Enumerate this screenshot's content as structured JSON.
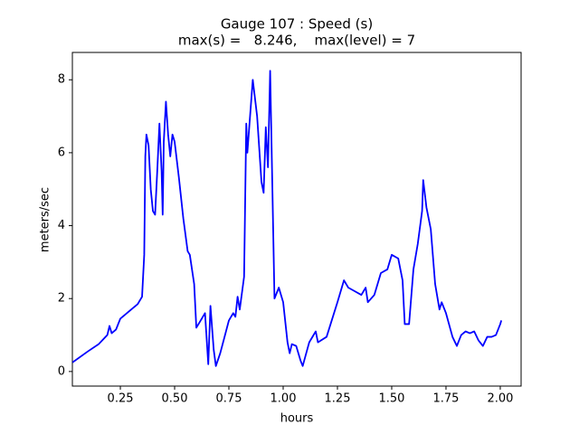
{
  "chart_data": {
    "type": "line",
    "title": "Gauge 107 : Speed (s)",
    "subtitle": "max(s) =   8.246,    max(level) = 7",
    "xlabel": "hours",
    "ylabel": "meters/sec",
    "x": [
      0.03,
      0.1,
      0.15,
      0.19,
      0.2,
      0.21,
      0.23,
      0.25,
      0.3,
      0.33,
      0.35,
      0.36,
      0.365,
      0.37,
      0.38,
      0.39,
      0.4,
      0.41,
      0.42,
      0.43,
      0.44,
      0.445,
      0.45,
      0.46,
      0.47,
      0.48,
      0.49,
      0.5,
      0.52,
      0.54,
      0.56,
      0.57,
      0.59,
      0.6,
      0.62,
      0.64,
      0.655,
      0.665,
      0.68,
      0.69,
      0.71,
      0.75,
      0.77,
      0.78,
      0.79,
      0.8,
      0.82,
      0.83,
      0.835,
      0.86,
      0.88,
      0.9,
      0.91,
      0.92,
      0.93,
      0.94,
      0.96,
      0.98,
      1.0,
      1.02,
      1.03,
      1.04,
      1.06,
      1.08,
      1.09,
      1.12,
      1.15,
      1.16,
      1.2,
      1.25,
      1.28,
      1.3,
      1.33,
      1.36,
      1.38,
      1.39,
      1.42,
      1.45,
      1.48,
      1.5,
      1.53,
      1.55,
      1.56,
      1.58,
      1.6,
      1.62,
      1.64,
      1.645,
      1.66,
      1.68,
      1.7,
      1.72,
      1.73,
      1.75,
      1.78,
      1.8,
      1.82,
      1.84,
      1.86,
      1.88,
      1.9,
      1.92,
      1.94,
      1.96,
      1.98,
      2.0,
      2.005
    ],
    "series": [
      {
        "name": "s",
        "color": "#0000ff",
        "values": [
          0.25,
          0.55,
          0.75,
          1.0,
          1.25,
          1.05,
          1.15,
          1.45,
          1.7,
          1.85,
          2.05,
          3.2,
          5.9,
          6.5,
          6.2,
          5.0,
          4.4,
          4.3,
          5.5,
          6.8,
          5.5,
          4.3,
          6.3,
          7.4,
          6.5,
          5.9,
          6.5,
          6.3,
          5.3,
          4.2,
          3.3,
          3.2,
          2.4,
          1.2,
          1.4,
          1.6,
          0.2,
          1.8,
          0.6,
          0.15,
          0.5,
          1.4,
          1.6,
          1.5,
          2.05,
          1.7,
          2.6,
          6.8,
          6.0,
          8.0,
          7.0,
          5.2,
          4.9,
          6.7,
          5.6,
          8.246,
          2.0,
          2.3,
          1.9,
          0.8,
          0.5,
          0.75,
          0.7,
          0.3,
          0.15,
          0.8,
          1.1,
          0.8,
          0.95,
          1.9,
          2.5,
          2.3,
          2.2,
          2.1,
          2.3,
          1.9,
          2.1,
          2.7,
          2.8,
          3.2,
          3.1,
          2.5,
          1.3,
          1.3,
          2.8,
          3.5,
          4.4,
          5.25,
          4.5,
          3.9,
          2.4,
          1.7,
          1.9,
          1.6,
          0.95,
          0.7,
          1.0,
          1.1,
          1.05,
          1.1,
          0.85,
          0.7,
          0.95,
          0.95,
          1.0,
          1.3,
          1.4
        ]
      }
    ],
    "xlim": [
      0.029,
      2.096
    ],
    "ylim": [
      -0.4,
      8.75
    ],
    "xticks": [
      {
        "value": 0.25,
        "label": "0.25"
      },
      {
        "value": 0.5,
        "label": "0.50"
      },
      {
        "value": 0.75,
        "label": "0.75"
      },
      {
        "value": 1.0,
        "label": "1.00"
      },
      {
        "value": 1.25,
        "label": "1.25"
      },
      {
        "value": 1.5,
        "label": "1.50"
      },
      {
        "value": 1.75,
        "label": "1.75"
      },
      {
        "value": 2.0,
        "label": "2.00"
      }
    ],
    "yticks": [
      0,
      2,
      4,
      6,
      8
    ]
  }
}
